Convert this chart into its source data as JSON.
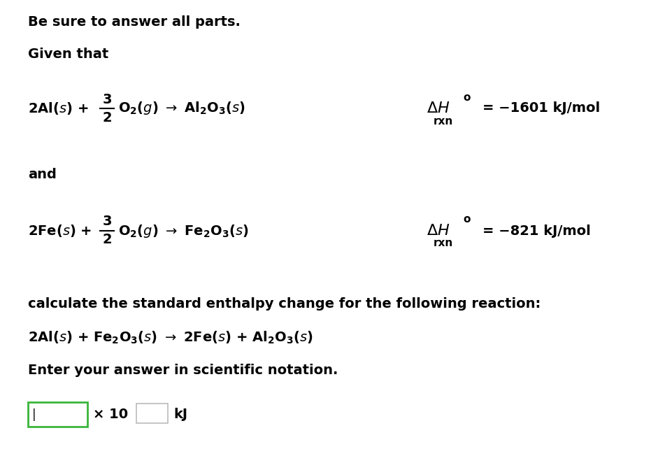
{
  "bg_color": "#ffffff",
  "title_bold": "Be sure to answer all parts.",
  "given_that": "Given that",
  "and_text": "and",
  "calc_text": "calculate the standard enthalpy change for the following reaction:",
  "enter_text": "Enter your answer in scientific notation.",
  "box1_color": "#3ab53a",
  "box2_color": "#bbbbbb",
  "font_size": 14
}
